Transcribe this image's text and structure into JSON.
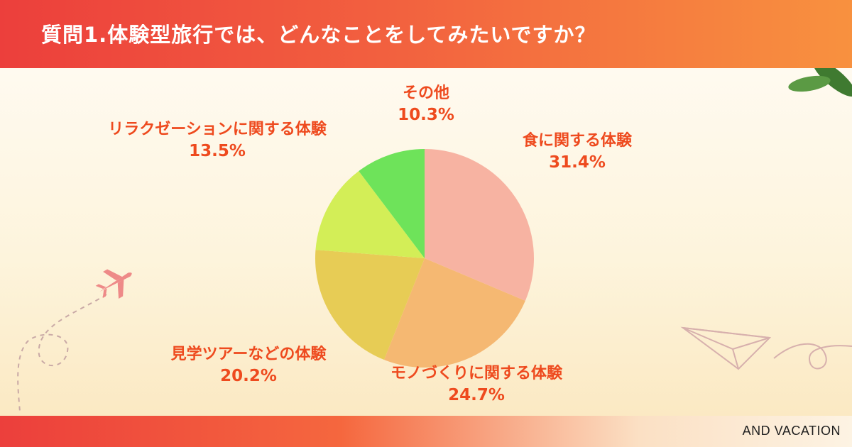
{
  "header": {
    "title": "質問1.体験型旅行では、どんなことをしてみたいですか？"
  },
  "footer": {
    "brand": "AND VACATION"
  },
  "colors": {
    "header_gradient": [
      "#ec3f3c",
      "#f8913f"
    ],
    "label_text": "#ee4a1e"
  },
  "chart_data": {
    "type": "pie",
    "title": "質問1.体験型旅行では、どんなことをしてみたいですか？",
    "start": "12 o'clock",
    "direction": "clockwise",
    "slices": [
      {
        "label": "食に関する体験",
        "value": 31.4,
        "display": "31.4%",
        "color": "#f7b3a2"
      },
      {
        "label": "モノづくりに関する体験",
        "value": 24.7,
        "display": "24.7%",
        "color": "#f5b872"
      },
      {
        "label": "見学ツアーなどの体験",
        "value": 20.2,
        "display": "20.2%",
        "color": "#e7cc55"
      },
      {
        "label": "リラクゼーションに関する体験",
        "value": 13.5,
        "display": "13.5%",
        "color": "#d3ee57"
      },
      {
        "label": "その他",
        "value": 10.3,
        "display": "10.3%",
        "color": "#6ee35a"
      }
    ]
  },
  "decorations": {
    "icons": [
      "airplane-icon",
      "paper-plane-icon",
      "hibiscus-flowers-icon"
    ]
  }
}
